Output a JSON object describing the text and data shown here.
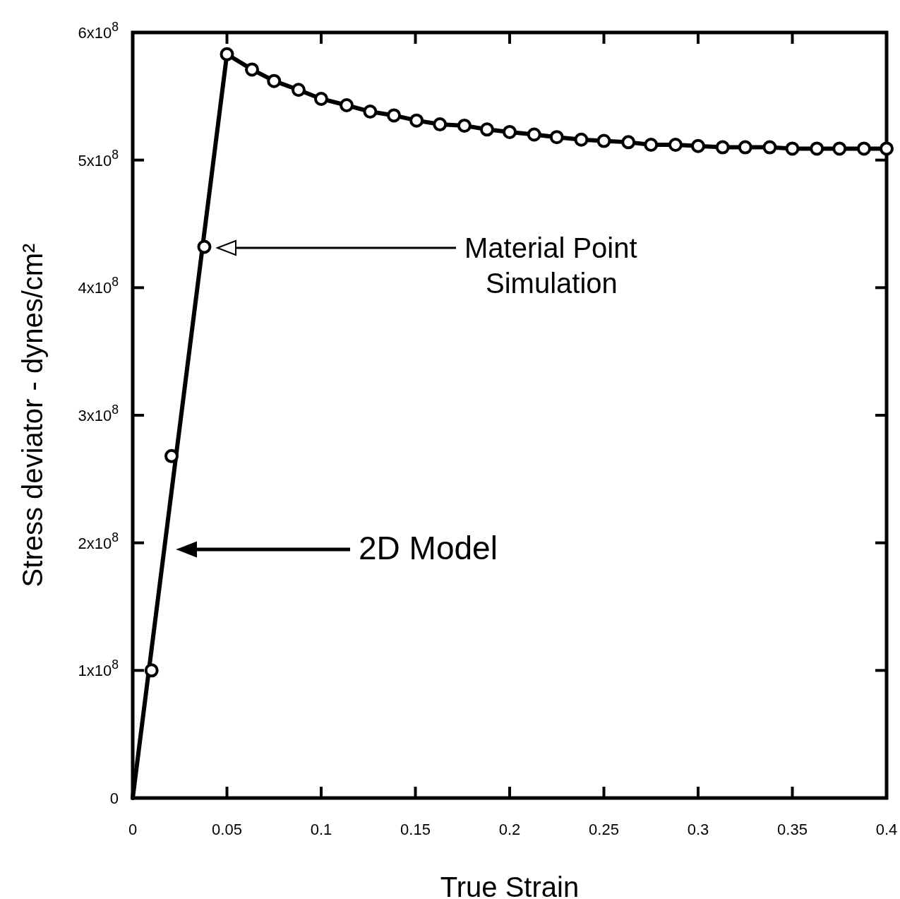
{
  "chart_data": {
    "type": "line",
    "xlabel": "True Strain",
    "ylabel": "Stress deviator - dynes/cm²",
    "xlim": [
      0,
      0.4
    ],
    "xticks": [
      0,
      0.05,
      0.1,
      0.15,
      0.2,
      0.25,
      0.3,
      0.35,
      0.4
    ],
    "ylim": [
      0,
      600000000
    ],
    "yticks": [
      0,
      {
        "value": 100000000,
        "label": "1x10$^{8}$"
      },
      {
        "value": 200000000,
        "label": "2x10$^{8}$"
      },
      {
        "value": 300000000,
        "label": "3x10$^{8}$"
      },
      {
        "value": 400000000,
        "label": "4x10$^{8}$"
      },
      {
        "value": 500000000,
        "label": "5x10$^{8}$"
      },
      {
        "value": 600000000,
        "label": "6x10$^{8}$"
      }
    ],
    "grid": false,
    "series": [
      {
        "color": "#000000",
        "marker": "none",
        "line_style": "solid",
        "x": [
          0,
          0.05,
          0.0633,
          0.075,
          0.088,
          0.1,
          0.1135,
          0.126,
          0.1386,
          0.1506,
          0.163,
          0.176,
          0.188,
          0.2,
          0.213,
          0.225,
          0.238,
          0.25,
          0.263,
          0.275,
          0.288,
          0.3,
          0.313,
          0.325,
          0.338,
          0.35,
          0.363,
          0.375,
          0.388,
          0.4
        ],
        "values": [
          0,
          583000000,
          571000000,
          562000000,
          555000000,
          548000000,
          543000000,
          538000000,
          535000000,
          531000000,
          528000000,
          527000000,
          524000000,
          522000000,
          520000000,
          518000000,
          516000000,
          515000000,
          514000000,
          512000000,
          512000000,
          511000000,
          510000000,
          510000000,
          510000000,
          509000000,
          509000000,
          509000000,
          509000000,
          509000000
        ]
      },
      {
        "type": "scatter",
        "color": "#000000",
        "marker": "circle",
        "x": [
          0.01,
          0.0206,
          0.038,
          0.05,
          0.0633,
          0.075,
          0.088,
          0.1,
          0.1135,
          0.126,
          0.1386,
          0.1506,
          0.163,
          0.176,
          0.188,
          0.2,
          0.213,
          0.225,
          0.238,
          0.25,
          0.263,
          0.275,
          0.288,
          0.3,
          0.313,
          0.325,
          0.338,
          0.35,
          0.363,
          0.375,
          0.388,
          0.4
        ],
        "values": [
          100000000,
          268000000,
          432000000,
          583000000,
          571000000,
          562000000,
          555000000,
          548000000,
          543000000,
          538000000,
          535000000,
          531000000,
          528000000,
          527000000,
          524000000,
          522000000,
          520000000,
          518000000,
          516000000,
          515000000,
          514000000,
          512000000,
          512000000,
          511000000,
          510000000,
          510000000,
          510000000,
          509000000,
          509000000,
          509000000,
          509000000,
          509000000
        ]
      }
    ],
    "annotations": [
      "Material Point Simulation",
      "2D Model"
    ]
  }
}
